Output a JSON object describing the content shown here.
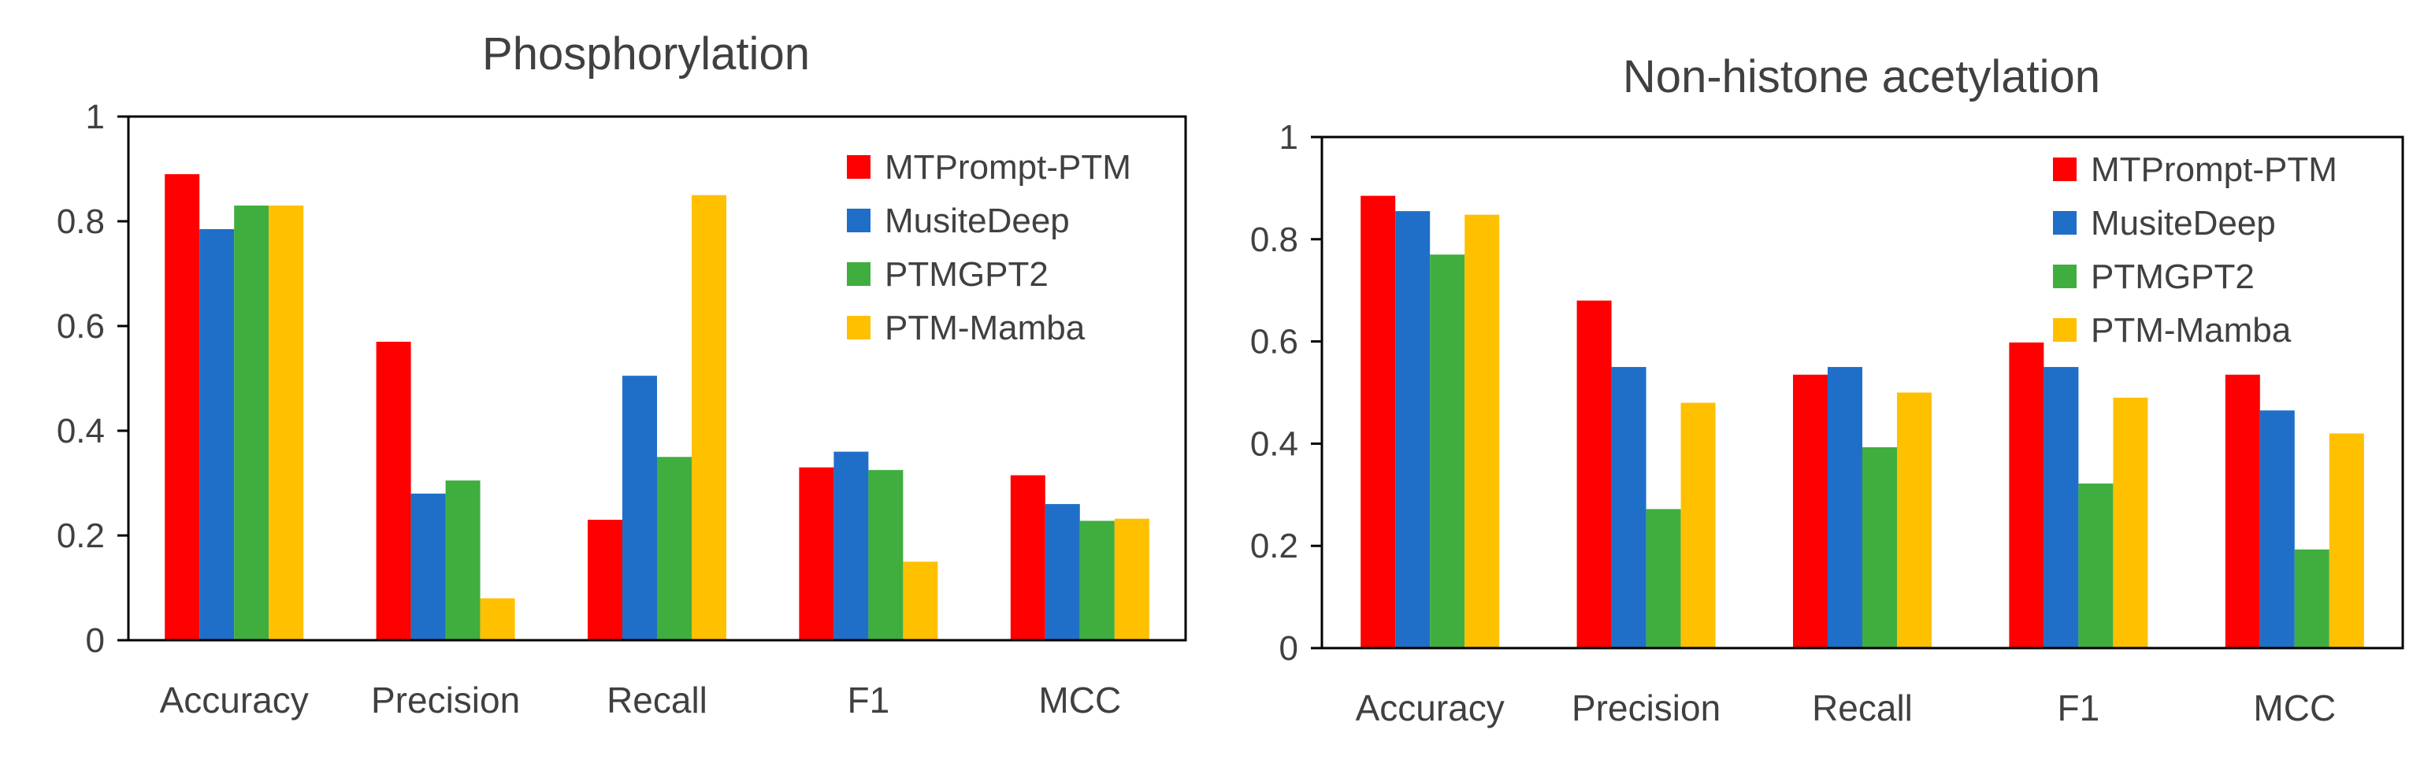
{
  "chart_data": [
    {
      "type": "bar",
      "title": "Phosphorylation",
      "categories": [
        "Accuracy",
        "Precision",
        "Recall",
        "F1",
        "MCC"
      ],
      "series": [
        {
          "name": "MTPrompt-PTM",
          "color": "#ff0000",
          "values": [
            0.89,
            0.57,
            0.23,
            0.33,
            0.315
          ]
        },
        {
          "name": "MusiteDeep",
          "color": "#1f6fc8",
          "values": [
            0.785,
            0.28,
            0.505,
            0.36,
            0.26
          ]
        },
        {
          "name": "PTMGPT2",
          "color": "#3fae3f",
          "values": [
            0.83,
            0.305,
            0.35,
            0.325,
            0.228
          ]
        },
        {
          "name": "PTM-Mamba",
          "color": "#ffc000",
          "values": [
            0.83,
            0.08,
            0.85,
            0.15,
            0.232
          ]
        }
      ],
      "yticks": [
        "0",
        "0.2",
        "0.4",
        "0.6",
        "0.8",
        "1"
      ],
      "ylim": [
        0,
        1
      ],
      "xlabel": "",
      "ylabel": "",
      "legend": "top-right"
    },
    {
      "type": "bar",
      "title": "Non-histone acetylation",
      "categories": [
        "Accuracy",
        "Precision",
        "Recall",
        "F1",
        "MCC"
      ],
      "series": [
        {
          "name": "MTPrompt-PTM",
          "color": "#ff0000",
          "values": [
            0.885,
            0.68,
            0.535,
            0.598,
            0.535
          ]
        },
        {
          "name": "MusiteDeep",
          "color": "#1f6fc8",
          "values": [
            0.855,
            0.55,
            0.55,
            0.55,
            0.465
          ]
        },
        {
          "name": "PTMGPT2",
          "color": "#3fae3f",
          "values": [
            0.77,
            0.272,
            0.393,
            0.322,
            0.193
          ]
        },
        {
          "name": "PTM-Mamba",
          "color": "#ffc000",
          "values": [
            0.848,
            0.48,
            0.5,
            0.49,
            0.42
          ]
        }
      ],
      "yticks": [
        "0",
        "0.2",
        "0.4",
        "0.6",
        "0.8",
        "1"
      ],
      "ylim": [
        0,
        1
      ],
      "xlabel": "",
      "ylabel": "",
      "legend": "top-right"
    }
  ]
}
